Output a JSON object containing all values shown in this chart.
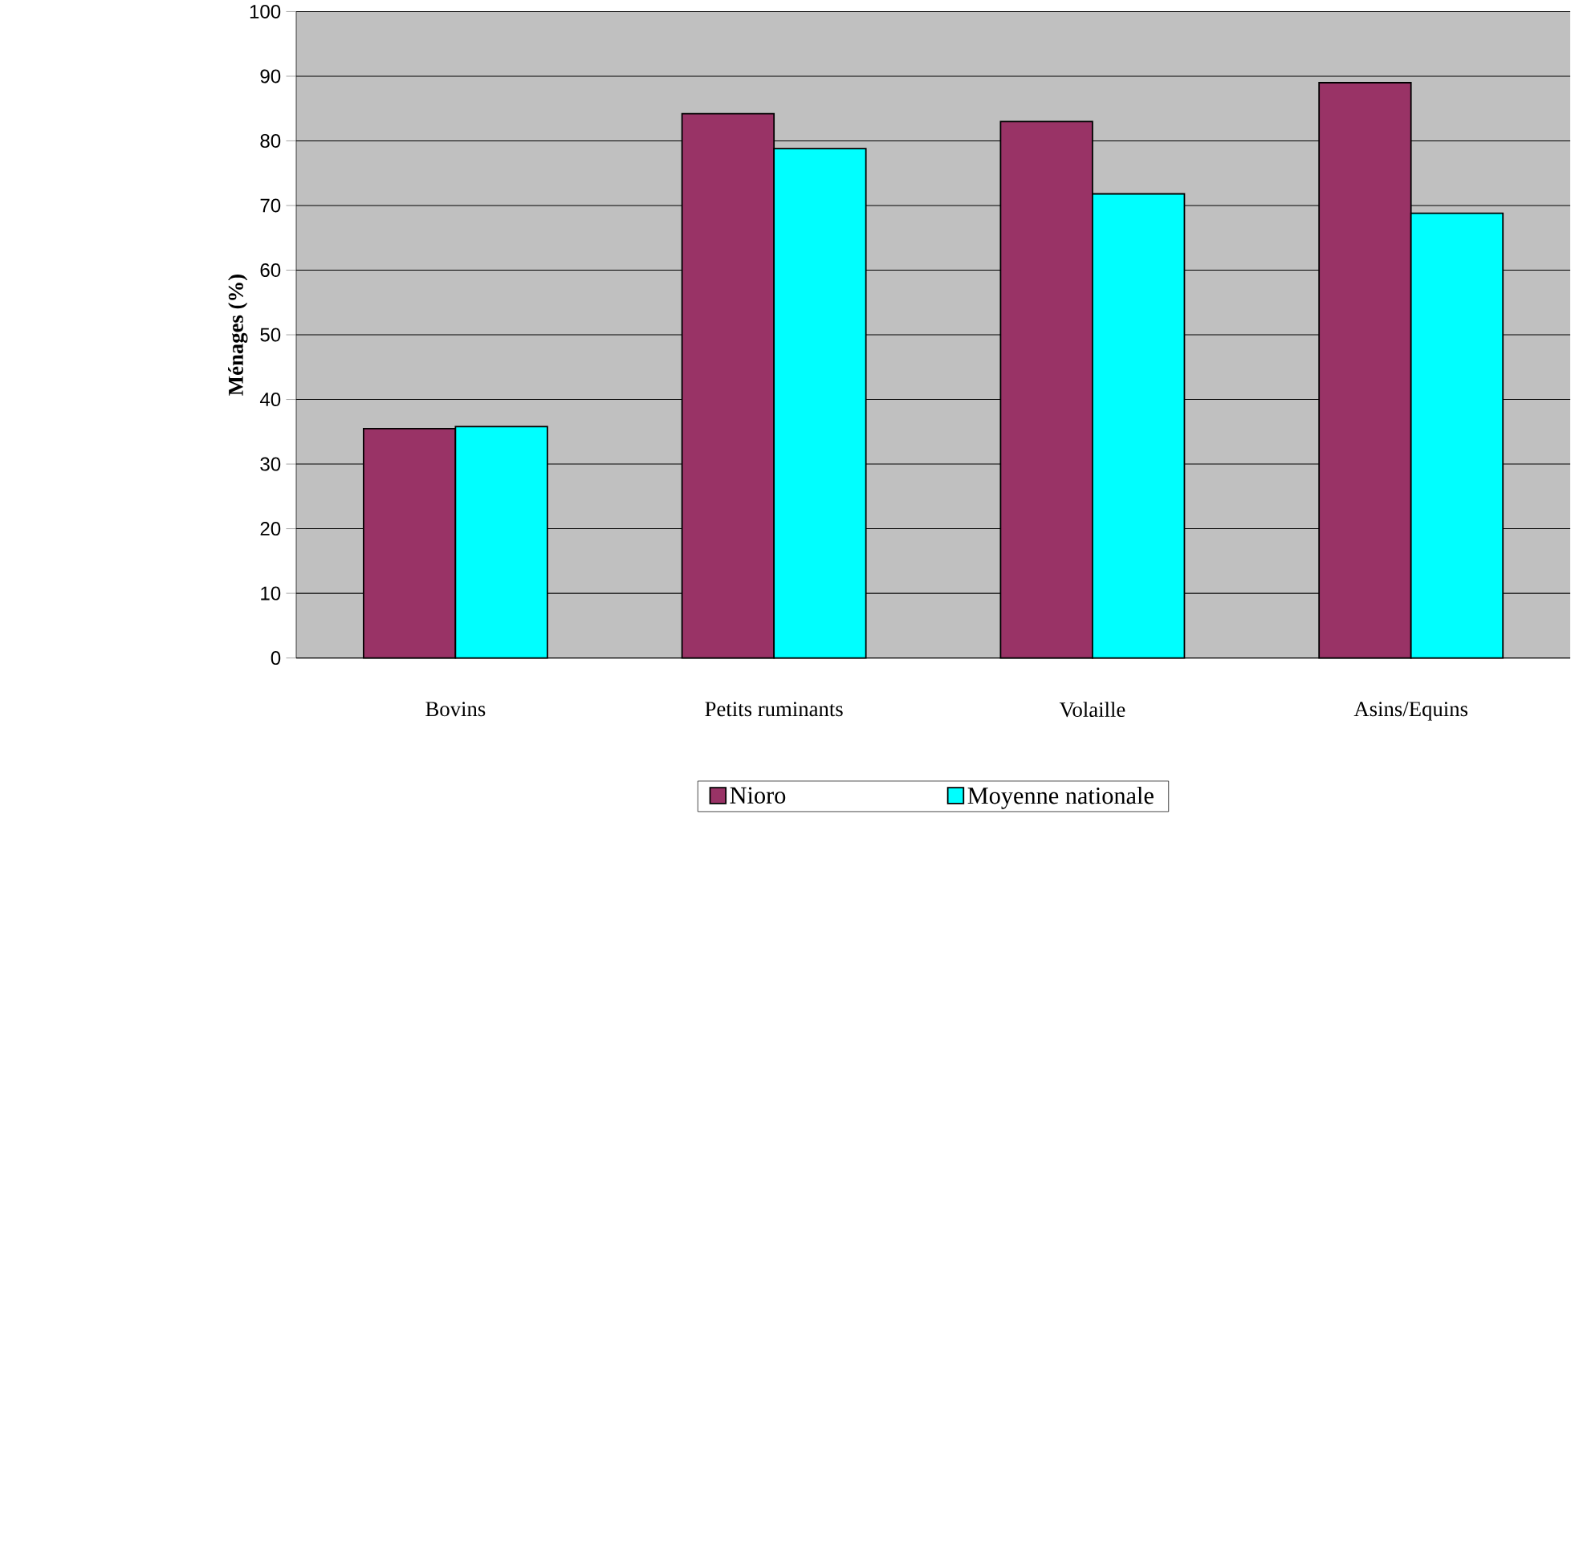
{
  "chart_data": {
    "type": "bar",
    "ylabel": "Ménages (%)",
    "categories": [
      "Bovins",
      "Petits ruminants",
      "Volaille",
      "Asins/Equins"
    ],
    "series": [
      {
        "name": "Nioro",
        "color": "#993366",
        "values": [
          35.5,
          84.2,
          83.0,
          89.0
        ]
      },
      {
        "name": "Moyenne nationale",
        "color": "#00ffff",
        "values": [
          35.8,
          78.8,
          71.8,
          68.8
        ]
      }
    ],
    "ylim": [
      0,
      100
    ],
    "yticks": [
      0,
      10,
      20,
      30,
      40,
      50,
      60,
      70,
      80,
      90,
      100
    ],
    "grid": "y",
    "legend": "bottom"
  }
}
